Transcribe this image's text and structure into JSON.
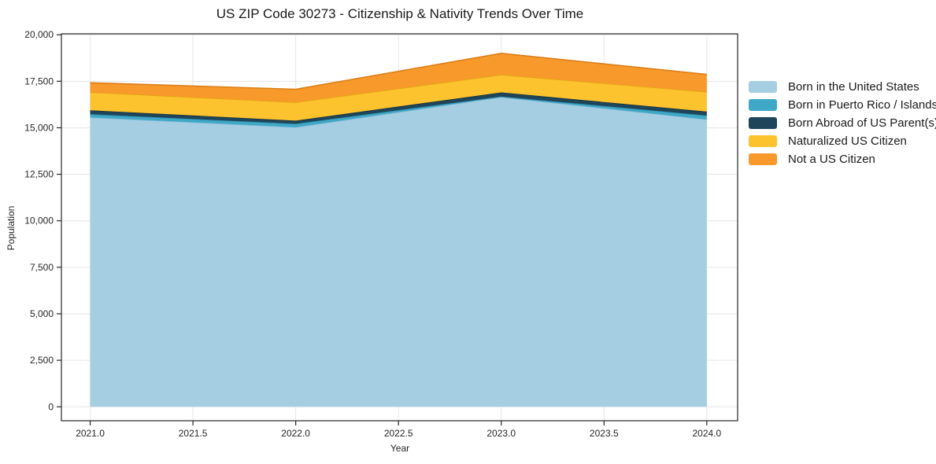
{
  "figure": {
    "title": "US ZIP Code 30273 - Citizenship & Nativity Trends Over Time",
    "xlabel": "Year",
    "ylabel": "Population"
  },
  "chart_data": {
    "type": "area",
    "stacked": true,
    "title": "US ZIP Code 30273 - Citizenship & Nativity Trends Over Time",
    "xlabel": "Year",
    "ylabel": "Population",
    "x": [
      2021,
      2022,
      2023,
      2024
    ],
    "series": [
      {
        "name": "Born in the United States",
        "color": "#A6CEE3",
        "edge": "#7FB8D8",
        "values": [
          15560,
          15030,
          16650,
          15450
        ]
      },
      {
        "name": "Born in Puerto Rico / Islands",
        "color": "#3EA8C6",
        "edge": "#2E8FAC",
        "values": [
          170,
          185,
          30,
          210
        ]
      },
      {
        "name": "Born Abroad of US Parent(s)",
        "color": "#1F455A",
        "edge": "#16323F",
        "values": [
          210,
          170,
          220,
          210
        ]
      },
      {
        "name": "Naturalized US Citizen",
        "color": "#FCC32E",
        "edge": "#E2A614",
        "values": [
          970,
          985,
          950,
          1060
        ]
      },
      {
        "name": "Not a US Citizen",
        "color": "#F8992C",
        "edge": "#DD7E17",
        "values": [
          510,
          700,
          1150,
          940
        ]
      }
    ],
    "stack_totals": [
      17420,
      17070,
      19000,
      17870
    ],
    "xlim": [
      2020.86,
      2024.15
    ],
    "ylim": [
      -750,
      20050
    ],
    "xticks": [
      2021.0,
      2021.5,
      2022.0,
      2022.5,
      2023.0,
      2023.5,
      2024.0
    ],
    "xtick_labels": [
      "2021.0",
      "2021.5",
      "2022.0",
      "2022.5",
      "2023.0",
      "2023.5",
      "2024.0"
    ],
    "yticks": [
      0,
      2500,
      5000,
      7500,
      10000,
      12500,
      15000,
      17500,
      20000
    ],
    "ytick_labels": [
      "0",
      "2,500",
      "5,000",
      "7,500",
      "10,000",
      "12,500",
      "15,000",
      "17,500",
      "20,000"
    ],
    "grid": true,
    "grid_color": "#e6e6e6",
    "spine_color": "#262626",
    "legend_position": "right"
  }
}
